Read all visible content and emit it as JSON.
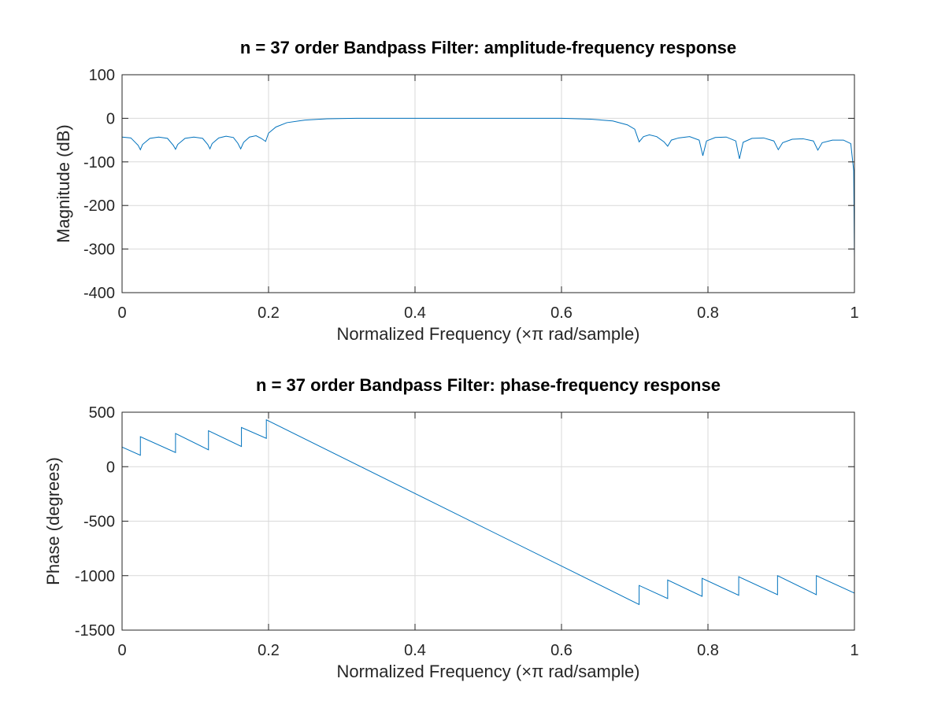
{
  "chart_data": [
    {
      "type": "line",
      "title": "n = 37 order Bandpass Filter: amplitude-frequency response",
      "xlabel": "Normalized Frequency (×π rad/sample)",
      "ylabel": "Magnitude (dB)",
      "xlim": [
        0,
        1
      ],
      "ylim": [
        -400,
        100
      ],
      "xticks": [
        0,
        0.2,
        0.4,
        0.6,
        0.8,
        1
      ],
      "xtick_labels": [
        "0",
        "0.2",
        "0.4",
        "0.6",
        "0.8",
        "1"
      ],
      "yticks": [
        -400,
        -300,
        -200,
        -100,
        0,
        100
      ],
      "ytick_labels": [
        "-400",
        "-300",
        "-200",
        "-100",
        "0",
        "100"
      ],
      "grid": true,
      "color": "#0072bd",
      "series": [
        {
          "x": [
            0,
            0.012,
            0.022,
            0.025,
            0.028,
            0.038,
            0.05,
            0.062,
            0.07,
            0.073,
            0.076,
            0.086,
            0.098,
            0.11,
            0.117,
            0.12,
            0.123,
            0.132,
            0.142,
            0.152,
            0.158,
            0.162,
            0.166,
            0.174,
            0.183,
            0.19,
            0.196,
            0.2,
            0.21,
            0.225,
            0.25,
            0.28,
            0.32,
            0.4,
            0.5,
            0.6,
            0.64,
            0.67,
            0.69,
            0.7,
            0.706,
            0.712,
            0.72,
            0.73,
            0.74,
            0.745,
            0.75,
            0.76,
            0.775,
            0.788,
            0.793,
            0.798,
            0.81,
            0.825,
            0.838,
            0.843,
            0.848,
            0.86,
            0.876,
            0.89,
            0.896,
            0.902,
            0.915,
            0.93,
            0.944,
            0.95,
            0.956,
            0.97,
            0.985,
            0.995,
            0.999,
            1
          ],
          "y": [
            -43,
            -45,
            -62,
            -72,
            -60,
            -46,
            -43,
            -46,
            -62,
            -71,
            -60,
            -46,
            -43,
            -46,
            -60,
            -70,
            -58,
            -45,
            -41,
            -44,
            -57,
            -70,
            -55,
            -43,
            -40,
            -46,
            -53,
            -34,
            -20,
            -10,
            -4,
            -1,
            0,
            0,
            0,
            0,
            -2,
            -6,
            -15,
            -25,
            -54,
            -42,
            -38,
            -42,
            -54,
            -64,
            -50,
            -45,
            -42,
            -50,
            -86,
            -52,
            -44,
            -43,
            -52,
            -93,
            -55,
            -46,
            -45,
            -52,
            -72,
            -56,
            -48,
            -47,
            -52,
            -73,
            -56,
            -50,
            -50,
            -58,
            -120,
            -320
          ]
        }
      ]
    },
    {
      "type": "line",
      "title": "n = 37 order Bandpass Filter: phase-frequency response",
      "xlabel": "Normalized Frequency (×π rad/sample)",
      "ylabel": "Phase (degrees)",
      "xlim": [
        0,
        1
      ],
      "ylim": [
        -1500,
        500
      ],
      "xticks": [
        0,
        0.2,
        0.4,
        0.6,
        0.8,
        1
      ],
      "xtick_labels": [
        "0",
        "0.2",
        "0.4",
        "0.6",
        "0.8",
        "1"
      ],
      "yticks": [
        -1500,
        -1000,
        -500,
        0,
        500
      ],
      "ytick_labels": [
        "-1500",
        "-1000",
        "-500",
        "0",
        "500"
      ],
      "grid": true,
      "color": "#0072bd",
      "series": [
        {
          "x": [
            0,
            0.025,
            0.025,
            0.073,
            0.073,
            0.118,
            0.118,
            0.163,
            0.163,
            0.197,
            0.197,
            0.706,
            0.706,
            0.745,
            0.745,
            0.792,
            0.792,
            0.842,
            0.842,
            0.895,
            0.895,
            0.948,
            0.948,
            1
          ],
          "y": [
            180,
            105,
            275,
            130,
            305,
            155,
            330,
            185,
            360,
            260,
            430,
            -1265,
            -1090,
            -1210,
            -1040,
            -1190,
            -1025,
            -1180,
            -1010,
            -1175,
            -1000,
            -1175,
            -1000,
            -1160
          ]
        }
      ]
    }
  ]
}
